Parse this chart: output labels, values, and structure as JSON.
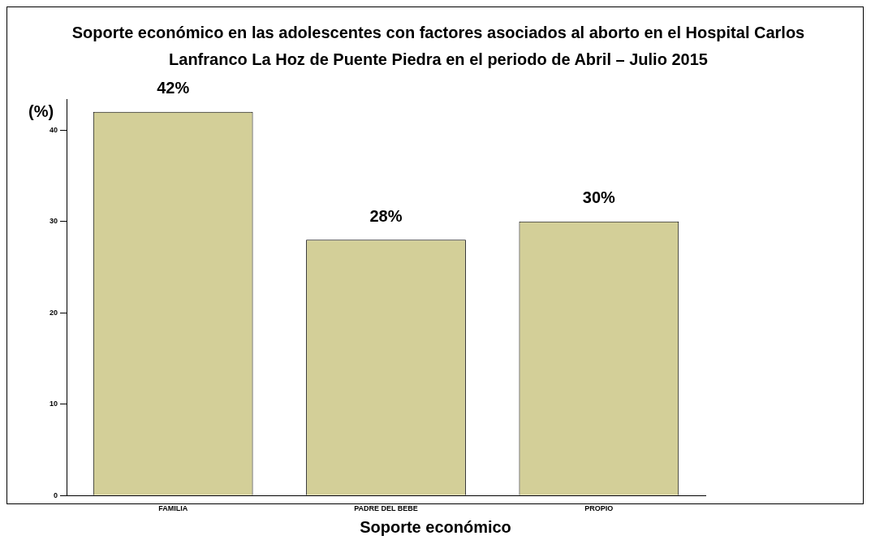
{
  "chart_data": {
    "type": "bar",
    "title": "Soporte económico en las adolescentes con factores asociados al aborto  en el Hospital Carlos Lanfranco La Hoz de Puente Piedra en el periodo de Abril – Julio 2015",
    "xlabel": "Soporte económico",
    "ylabel": "(%)",
    "categories": [
      "FAMILIA",
      "PADRE DEL BEBE",
      "PROPIO"
    ],
    "values": [
      42,
      28,
      30
    ],
    "value_labels": [
      "42%",
      "28%",
      "30%"
    ],
    "color": "#d3cf98",
    "ylim": [
      0,
      43.4
    ],
    "yticks": [
      0,
      10,
      20,
      30,
      40
    ],
    "grid": false
  }
}
